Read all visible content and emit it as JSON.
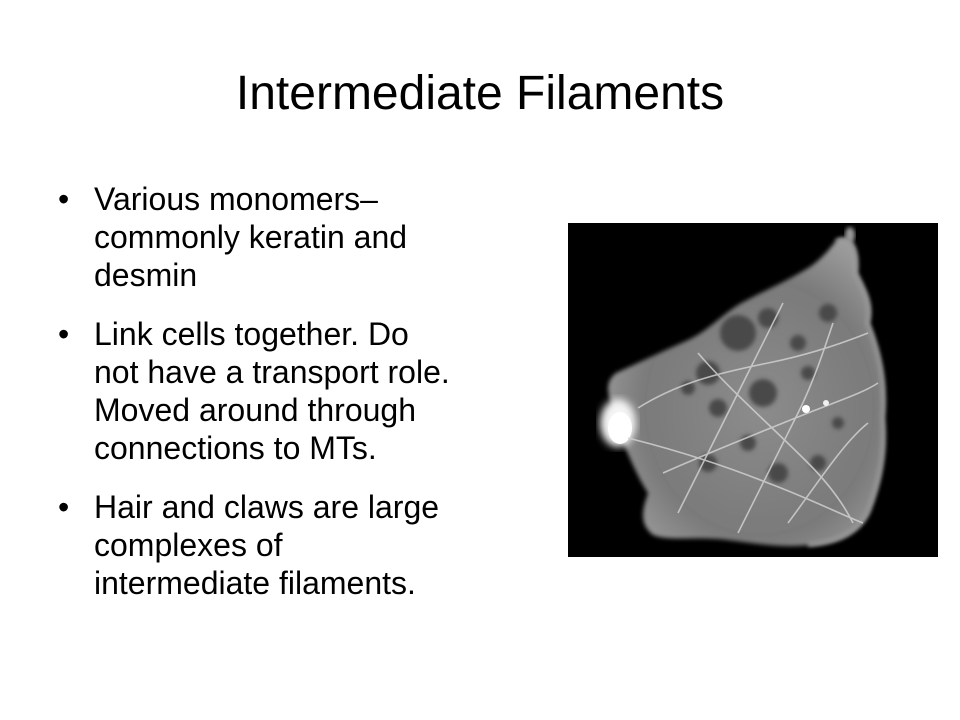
{
  "slide": {
    "title": "Intermediate Filaments",
    "bullet_symbol": "•",
    "bullets": [
      {
        "text": "Various monomers–\ncommonly keratin and\ndesmin"
      },
      {
        "text": "Link cells together. Do\nnot have a transport role.\nMoved around through\nconnections to MTs."
      },
      {
        "text": "Hair and claws are large\ncomplexes of\nintermediate filaments."
      }
    ]
  },
  "micrograph": {
    "subject": "fluorescence micrograph of cell intermediate filament network",
    "background_color": "#000000",
    "cell_color": "#8a8a8a"
  }
}
